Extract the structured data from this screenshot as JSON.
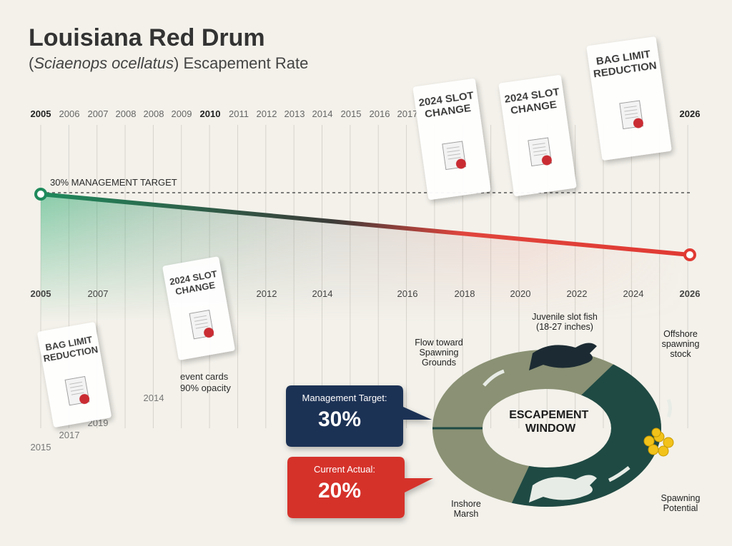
{
  "header": {
    "title": "Louisiana Red Drum",
    "subtitle": {
      "open": "(",
      "species": "Sciaenops ocellatus",
      "rest": ") Escapement Rate"
    }
  },
  "timeline": {
    "top_years": [
      2005,
      2006,
      2007,
      2008,
      2008,
      2009,
      2010,
      2011,
      2012,
      2013,
      2014,
      2015,
      2016,
      2017,
      2026
    ],
    "bottom_years": [
      2005,
      2007,
      2012,
      2014,
      2016,
      2018,
      2020,
      2022,
      2024,
      2026
    ],
    "scattered_years": [
      2014,
      2017,
      2019,
      2015
    ],
    "target_label": "30% MANAGEMENT TARGET",
    "event_cards": [
      {
        "lines": [
          "2024 SLOT",
          "CHANGE"
        ]
      },
      {
        "lines": [
          "2024 SLOT",
          "CHANGE"
        ]
      },
      {
        "lines": [
          "BAG LIMIT",
          "REDUCTION"
        ]
      },
      {
        "lines": [
          "2024 SLOT",
          "CHANGE"
        ]
      },
      {
        "lines": [
          "BAG LIMIT",
          "REDUCTION"
        ]
      }
    ],
    "note": [
      "event cards",
      "90% opacity"
    ]
  },
  "callouts": [
    {
      "label": "Management Target:",
      "value": "30%"
    },
    {
      "label": "Current Actual:",
      "value": "20%"
    }
  ],
  "cycle": {
    "center": [
      "ESCAPEMENT",
      "WINDOW"
    ],
    "labels": [
      [
        "Juvenile slot fish",
        "(18-27 inches)"
      ],
      [
        "Offshore",
        "spawning",
        "stock"
      ],
      [
        "Flow toward",
        "Spawning",
        "Grounds"
      ],
      [
        "Spawning",
        "Potential"
      ],
      [
        "Inshore",
        "Marsh"
      ]
    ]
  }
}
